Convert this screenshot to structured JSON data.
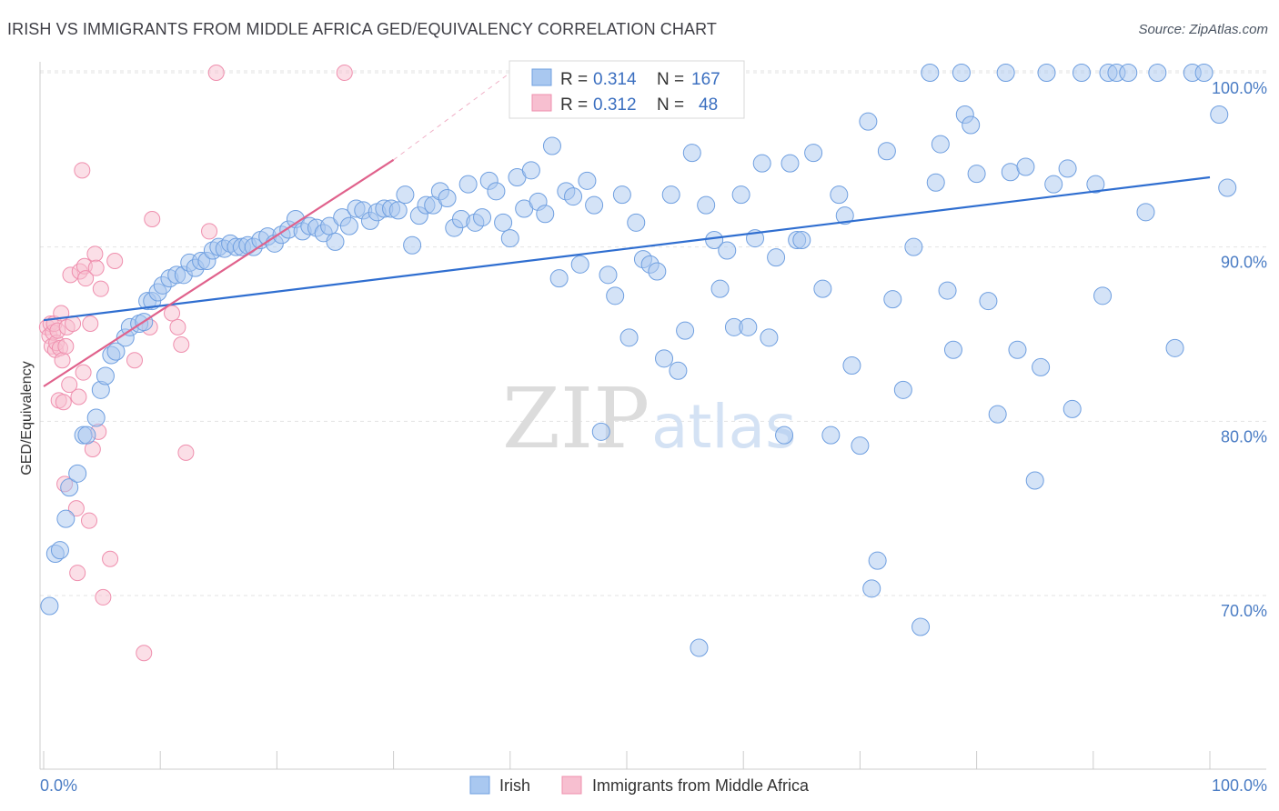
{
  "header": {
    "title": "IRISH VS IMMIGRANTS FROM MIDDLE AFRICA GED/EQUIVALENCY CORRELATION CHART",
    "source": "Source: ZipAtlas.com"
  },
  "watermark": {
    "zip": "ZIP",
    "atlas": "atlas"
  },
  "legend": {
    "row1": {
      "r_label": "R = ",
      "r_value": "0.314",
      "n_label": "N = ",
      "n_value": "167"
    },
    "row2": {
      "r_label": "R = ",
      "r_value": "0.312",
      "n_label": "N = ",
      "n_value": "48"
    }
  },
  "colors": {
    "irish_fill": "#a9c8f0",
    "irish_stroke": "#6f9fe0",
    "irish_line": "#2f6ed0",
    "africa_fill": "#f7bfd0",
    "africa_stroke": "#ef8fae",
    "africa_line": "#e0628c",
    "grid": "#e3e3e3",
    "tick_label": "#4a7cc4"
  },
  "chart_data": {
    "type": "scatter",
    "ylabel": "GED/Equivalency",
    "xlim": [
      0,
      100
    ],
    "ylim": [
      60,
      101
    ],
    "x_tick_labels": [
      "0.0%",
      "100.0%"
    ],
    "y_ticks": [
      70,
      80,
      90,
      100
    ],
    "y_tick_labels": [
      "70.0%",
      "80.0%",
      "90.0%",
      "100.0%"
    ],
    "grid": true,
    "legend_position": "top-center",
    "series": [
      {
        "name": "Irish",
        "trend": [
          [
            0,
            85.8
          ],
          [
            100,
            94.0
          ]
        ],
        "points": [
          [
            0.5,
            69.4
          ],
          [
            1,
            72.4
          ],
          [
            1.4,
            72.6
          ],
          [
            1.9,
            74.4
          ],
          [
            2.2,
            76.2
          ],
          [
            2.9,
            77.0
          ],
          [
            3.4,
            79.2
          ],
          [
            3.7,
            79.2
          ],
          [
            4.5,
            80.2
          ],
          [
            4.9,
            81.8
          ],
          [
            5.3,
            82.6
          ],
          [
            5.8,
            83.8
          ],
          [
            6.2,
            84.0
          ],
          [
            7.0,
            84.8
          ],
          [
            7.4,
            85.4
          ],
          [
            8.2,
            85.6
          ],
          [
            8.6,
            85.7
          ],
          [
            8.9,
            86.9
          ],
          [
            9.3,
            86.9
          ],
          [
            9.8,
            87.4
          ],
          [
            10.2,
            87.8
          ],
          [
            10.8,
            88.2
          ],
          [
            11.4,
            88.4
          ],
          [
            12.0,
            88.4
          ],
          [
            12.5,
            89.1
          ],
          [
            13.0,
            88.8
          ],
          [
            13.5,
            89.2
          ],
          [
            14.0,
            89.2
          ],
          [
            14.5,
            89.8
          ],
          [
            15.0,
            90.0
          ],
          [
            15.5,
            89.9
          ],
          [
            16.0,
            90.2
          ],
          [
            16.5,
            90.0
          ],
          [
            17.0,
            90.0
          ],
          [
            17.5,
            90.1
          ],
          [
            18.0,
            90.0
          ],
          [
            18.6,
            90.4
          ],
          [
            19.2,
            90.6
          ],
          [
            19.8,
            90.2
          ],
          [
            20.4,
            90.7
          ],
          [
            21.0,
            91.0
          ],
          [
            21.6,
            91.6
          ],
          [
            22.2,
            90.9
          ],
          [
            22.8,
            91.2
          ],
          [
            23.4,
            91.1
          ],
          [
            24.0,
            90.8
          ],
          [
            24.5,
            91.2
          ],
          [
            25.0,
            90.3
          ],
          [
            25.6,
            91.7
          ],
          [
            26.2,
            91.2
          ],
          [
            26.8,
            92.2
          ],
          [
            27.4,
            92.1
          ],
          [
            28.0,
            91.5
          ],
          [
            28.6,
            92.0
          ],
          [
            29.2,
            92.2
          ],
          [
            29.8,
            92.2
          ],
          [
            30.4,
            92.1
          ],
          [
            31.0,
            93.0
          ],
          [
            31.6,
            90.1
          ],
          [
            32.2,
            91.8
          ],
          [
            32.8,
            92.4
          ],
          [
            33.4,
            92.4
          ],
          [
            34.0,
            93.2
          ],
          [
            34.6,
            92.8
          ],
          [
            35.2,
            91.1
          ],
          [
            35.8,
            91.6
          ],
          [
            36.4,
            93.6
          ],
          [
            37.0,
            91.4
          ],
          [
            37.6,
            91.7
          ],
          [
            38.2,
            93.8
          ],
          [
            38.8,
            93.2
          ],
          [
            39.4,
            91.4
          ],
          [
            40.0,
            90.5
          ],
          [
            40.6,
            94.0
          ],
          [
            41.2,
            92.2
          ],
          [
            41.8,
            94.4
          ],
          [
            42.4,
            92.6
          ],
          [
            43.0,
            91.9
          ],
          [
            43.6,
            95.8
          ],
          [
            44.2,
            88.2
          ],
          [
            44.8,
            93.2
          ],
          [
            45.4,
            92.9
          ],
          [
            46.0,
            89.0
          ],
          [
            46.6,
            93.8
          ],
          [
            47.2,
            92.4
          ],
          [
            47.8,
            79.4
          ],
          [
            48.4,
            88.4
          ],
          [
            49.0,
            87.2
          ],
          [
            49.6,
            93.0
          ],
          [
            50.2,
            84.8
          ],
          [
            50.8,
            91.4
          ],
          [
            51.4,
            89.3
          ],
          [
            52.0,
            89.0
          ],
          [
            52.6,
            88.6
          ],
          [
            53.2,
            83.6
          ],
          [
            53.8,
            93.0
          ],
          [
            54.4,
            82.9
          ],
          [
            55.0,
            85.2
          ],
          [
            55.6,
            95.4
          ],
          [
            56.2,
            67.0
          ],
          [
            56.8,
            92.4
          ],
          [
            57.5,
            90.4
          ],
          [
            58.0,
            87.6
          ],
          [
            58.6,
            89.8
          ],
          [
            59.2,
            85.4
          ],
          [
            59.8,
            93.0
          ],
          [
            60.4,
            85.4
          ],
          [
            61.0,
            90.5
          ],
          [
            61.6,
            94.8
          ],
          [
            62.2,
            84.8
          ],
          [
            62.8,
            89.4
          ],
          [
            63.5,
            79.2
          ],
          [
            64.0,
            94.8
          ],
          [
            64.6,
            90.4
          ],
          [
            65.0,
            90.4
          ],
          [
            66.0,
            95.4
          ],
          [
            66.8,
            87.6
          ],
          [
            67.5,
            79.2
          ],
          [
            68.2,
            93.0
          ],
          [
            68.7,
            91.8
          ],
          [
            69.3,
            83.2
          ],
          [
            70.0,
            78.6
          ],
          [
            70.7,
            97.2
          ],
          [
            71.5,
            72.0
          ],
          [
            71.0,
            70.4
          ],
          [
            72.3,
            95.5
          ],
          [
            72.8,
            87.0
          ],
          [
            73.7,
            81.8
          ],
          [
            74.6,
            90.0
          ],
          [
            75.2,
            68.2
          ],
          [
            76.0,
            100.0
          ],
          [
            76.5,
            93.7
          ],
          [
            76.9,
            95.9
          ],
          [
            77.5,
            87.5
          ],
          [
            78.0,
            84.1
          ],
          [
            78.7,
            100.0
          ],
          [
            79.0,
            97.6
          ],
          [
            79.5,
            97.0
          ],
          [
            80.0,
            94.2
          ],
          [
            81.0,
            86.9
          ],
          [
            81.8,
            80.4
          ],
          [
            82.5,
            100.0
          ],
          [
            82.9,
            94.3
          ],
          [
            83.5,
            84.1
          ],
          [
            84.2,
            94.6
          ],
          [
            85.0,
            76.6
          ],
          [
            85.5,
            83.1
          ],
          [
            86.0,
            100.0
          ],
          [
            86.6,
            93.6
          ],
          [
            87.8,
            94.5
          ],
          [
            88.2,
            80.7
          ],
          [
            89.0,
            100.0
          ],
          [
            90.2,
            93.6
          ],
          [
            90.8,
            87.2
          ],
          [
            91.3,
            100.0
          ],
          [
            92.0,
            100.0
          ],
          [
            93.0,
            100.0
          ],
          [
            94.5,
            92.0
          ],
          [
            95.5,
            100.0
          ],
          [
            97.0,
            84.2
          ],
          [
            98.5,
            100.0
          ],
          [
            99.5,
            100.0
          ],
          [
            100.8,
            97.6
          ],
          [
            101.5,
            93.4
          ]
        ]
      },
      {
        "name": "Immigrants from Middle Africa",
        "trend": [
          [
            0,
            82.0
          ],
          [
            30,
            95.0
          ]
        ],
        "trend_dashed": [
          [
            30,
            95.0
          ],
          [
            40,
            100.0
          ]
        ],
        "points": [
          [
            0.3,
            85.4
          ],
          [
            0.5,
            84.9
          ],
          [
            0.6,
            85.6
          ],
          [
            0.7,
            84.3
          ],
          [
            0.8,
            85.1
          ],
          [
            0.9,
            85.6
          ],
          [
            1.0,
            84.1
          ],
          [
            1.1,
            84.5
          ],
          [
            1.2,
            85.2
          ],
          [
            1.3,
            81.2
          ],
          [
            1.4,
            84.2
          ],
          [
            1.5,
            86.2
          ],
          [
            1.6,
            83.5
          ],
          [
            1.7,
            81.1
          ],
          [
            1.8,
            76.4
          ],
          [
            1.9,
            84.3
          ],
          [
            2.0,
            85.4
          ],
          [
            2.2,
            82.1
          ],
          [
            2.3,
            88.4
          ],
          [
            2.5,
            85.6
          ],
          [
            2.8,
            75.0
          ],
          [
            2.9,
            71.3
          ],
          [
            3.0,
            81.4
          ],
          [
            3.1,
            88.6
          ],
          [
            3.3,
            94.4
          ],
          [
            3.4,
            82.8
          ],
          [
            3.5,
            88.9
          ],
          [
            3.6,
            88.2
          ],
          [
            3.9,
            74.3
          ],
          [
            4.0,
            85.6
          ],
          [
            4.2,
            78.4
          ],
          [
            4.4,
            89.6
          ],
          [
            4.5,
            88.8
          ],
          [
            4.7,
            79.4
          ],
          [
            4.9,
            87.6
          ],
          [
            5.1,
            69.9
          ],
          [
            5.7,
            72.1
          ],
          [
            6.1,
            89.2
          ],
          [
            7.8,
            83.5
          ],
          [
            8.6,
            66.7
          ],
          [
            9.1,
            85.4
          ],
          [
            9.3,
            91.6
          ],
          [
            11.0,
            86.2
          ],
          [
            11.5,
            85.4
          ],
          [
            11.8,
            84.4
          ],
          [
            12.2,
            78.2
          ],
          [
            14.2,
            90.9
          ],
          [
            14.8,
            100.0
          ],
          [
            25.8,
            100.0
          ]
        ]
      }
    ]
  },
  "bottom_legend": {
    "irish": "Irish",
    "africa": "Immigrants from Middle Africa"
  }
}
